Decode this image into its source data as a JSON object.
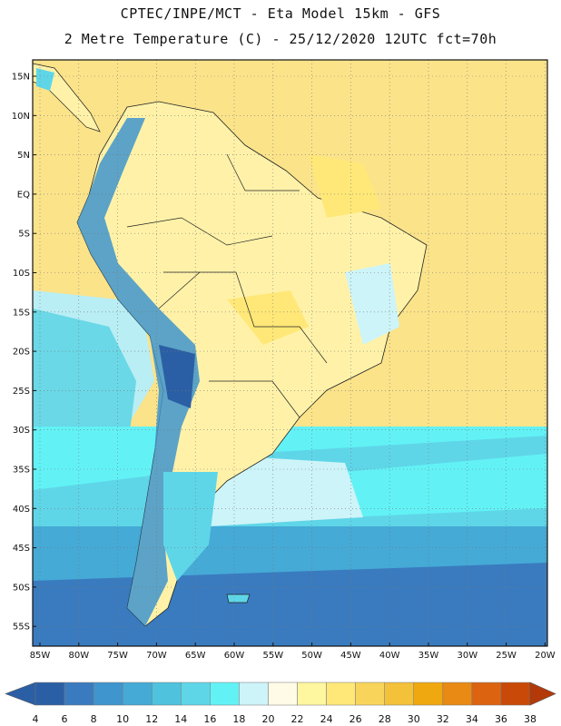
{
  "header": {
    "line1": "CPTEC/INPE/MCT -  Eta Model 15km - GFS",
    "line2": "2 Metre Temperature (C) - 25/12/2020 12UTC fct=70h"
  },
  "map": {
    "lat_labels": [
      "15N",
      "10N",
      "5N",
      "EQ",
      "5S",
      "10S",
      "15S",
      "20S",
      "25S",
      "30S",
      "35S",
      "40S",
      "45S",
      "50S",
      "55S"
    ],
    "lon_labels": [
      "85W",
      "80W",
      "75W",
      "70W",
      "65W",
      "60W",
      "55W",
      "50W",
      "45W",
      "40W",
      "35W",
      "30W",
      "25W",
      "20W"
    ],
    "grid_style": "dotted"
  },
  "colorbar": {
    "labels": [
      "4",
      "6",
      "8",
      "10",
      "12",
      "14",
      "16",
      "18",
      "20",
      "22",
      "24",
      "26",
      "28",
      "30",
      "32",
      "34",
      "36",
      "38"
    ],
    "colors": [
      "#2b5fa5",
      "#3a7bbf",
      "#3f95cd",
      "#45aad6",
      "#4fc2de",
      "#5fd6e8",
      "#62f2f6",
      "#cdf4f8",
      "#fffbe6",
      "#fff6a0",
      "#ffe878",
      "#f8d55a",
      "#f3c13a",
      "#f0a810",
      "#e98a14",
      "#dc6410",
      "#c94a08"
    ],
    "low_arrow_color": "#2b5fa5",
    "high_arrow_color": "#b33a08"
  }
}
